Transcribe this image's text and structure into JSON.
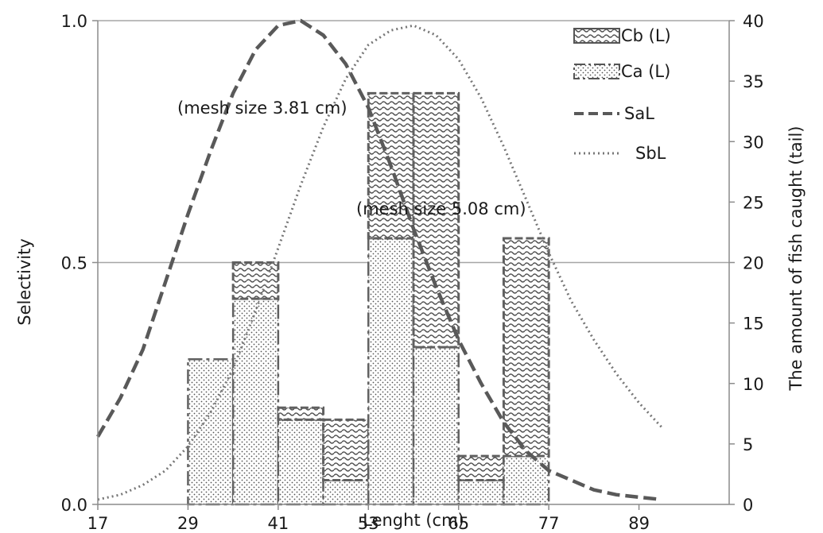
{
  "chart_data": {
    "type": "bar",
    "xlabel": "Lenght (cm)",
    "ylabel": "Selectivity",
    "y2label": "The amount of fish caught (tail)",
    "xlim": [
      17,
      101
    ],
    "x_ticks": [
      17,
      29,
      41,
      53,
      65,
      77,
      89
    ],
    "ylim": [
      0,
      1
    ],
    "y_ticks": [
      "0.0",
      "0.5",
      "1.0"
    ],
    "y_tick_values": [
      0,
      0.5,
      1.0
    ],
    "y2lim": [
      0,
      40
    ],
    "y2_ticks": [
      0,
      5,
      10,
      15,
      20,
      25,
      30,
      35,
      40
    ],
    "grid": "horizontal",
    "legend_position": "top-right",
    "bins": [
      {
        "x0": 29,
        "x1": 35,
        "ca": 12,
        "cb": 0
      },
      {
        "x0": 35,
        "x1": 41,
        "ca": 17,
        "cb": 3
      },
      {
        "x0": 41,
        "x1": 47,
        "ca": 7,
        "cb": 1
      },
      {
        "x0": 47,
        "x1": 53,
        "ca": 2,
        "cb": 5
      },
      {
        "x0": 53,
        "x1": 59,
        "ca": 22,
        "cb": 12
      },
      {
        "x0": 59,
        "x1": 65,
        "ca": 13,
        "cb": 21
      },
      {
        "x0": 65,
        "x1": 71,
        "ca": 2,
        "cb": 2
      },
      {
        "x0": 71,
        "x1": 77,
        "ca": 4,
        "cb": 18
      }
    ],
    "series": [
      {
        "name": "Cb (L)",
        "type": "bar",
        "pattern": "wave"
      },
      {
        "name": "Ca (L)",
        "type": "bar",
        "pattern": "dots"
      },
      {
        "name": "SaL",
        "type": "line",
        "style": "dashed",
        "x": [
          17,
          20,
          23,
          26,
          29,
          32,
          35,
          38,
          41,
          44,
          47,
          50,
          53,
          56,
          59,
          62,
          65,
          68,
          71,
          74,
          77,
          80,
          83,
          86,
          89,
          92
        ],
        "y": [
          0.14,
          0.22,
          0.32,
          0.46,
          0.6,
          0.73,
          0.85,
          0.94,
          0.99,
          1.0,
          0.97,
          0.91,
          0.82,
          0.7,
          0.57,
          0.45,
          0.34,
          0.25,
          0.17,
          0.11,
          0.07,
          0.05,
          0.03,
          0.02,
          0.015,
          0.01
        ]
      },
      {
        "name": "SbL",
        "type": "line",
        "style": "dotted",
        "x": [
          17,
          20,
          23,
          26,
          29,
          32,
          35,
          38,
          41,
          44,
          47,
          50,
          53,
          56,
          59,
          62,
          65,
          68,
          71,
          74,
          77,
          80,
          83,
          86,
          89,
          92
        ],
        "y": [
          0.01,
          0.02,
          0.04,
          0.07,
          0.12,
          0.19,
          0.28,
          0.4,
          0.53,
          0.66,
          0.78,
          0.88,
          0.95,
          0.98,
          0.99,
          0.97,
          0.92,
          0.84,
          0.74,
          0.63,
          0.52,
          0.42,
          0.34,
          0.27,
          0.21,
          0.16
        ]
      }
    ],
    "annotations": [
      {
        "text": "(mesh size 3.81 cm)",
        "x": 26,
        "y": 0.77
      },
      {
        "text": "(mesh size 5.08 cm)",
        "x": 48,
        "y": 0.62
      }
    ]
  }
}
